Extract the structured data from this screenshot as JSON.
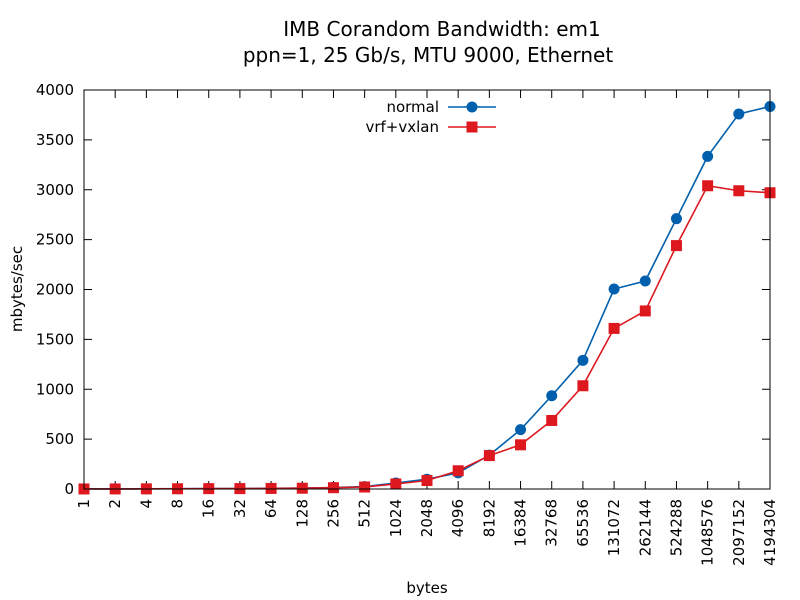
{
  "chart_data": {
    "type": "line",
    "title": "IMB Corandom Bandwidth: em1",
    "subtitle": "ppn=1, 25 Gb/s, MTU 9000, Ethernet",
    "xlabel": "bytes",
    "ylabel": "mbytes/sec",
    "categories": [
      "1",
      "2",
      "4",
      "8",
      "16",
      "32",
      "64",
      "128",
      "256",
      "512",
      "1024",
      "2048",
      "4096",
      "8192",
      "16384",
      "32768",
      "65536",
      "131072",
      "262144",
      "524288",
      "1048576",
      "2097152",
      "4194304"
    ],
    "ylim": [
      0,
      4000
    ],
    "yticks": [
      0,
      500,
      1000,
      1500,
      2000,
      2500,
      3000,
      3500,
      4000
    ],
    "grid": false,
    "legend_position": "top-center",
    "series": [
      {
        "name": "normal",
        "color": "#0060ad",
        "marker": "circle",
        "values": [
          0.4,
          0.8,
          1.6,
          3.1,
          4.6,
          4.9,
          7.3,
          9.1,
          15,
          24,
          60,
          98,
          162,
          340,
          595,
          935,
          1290,
          2005,
          2085,
          2710,
          3335,
          3760,
          3835
        ]
      },
      {
        "name": "vrf+vxlan",
        "color": "#dd181f",
        "marker": "square",
        "values": [
          0.4,
          0.7,
          1.4,
          2.6,
          3.6,
          3.9,
          5.7,
          7.7,
          13,
          20,
          50,
          85,
          183,
          335,
          443,
          687,
          1035,
          1610,
          1785,
          2440,
          3040,
          2990,
          2970
        ]
      }
    ]
  }
}
